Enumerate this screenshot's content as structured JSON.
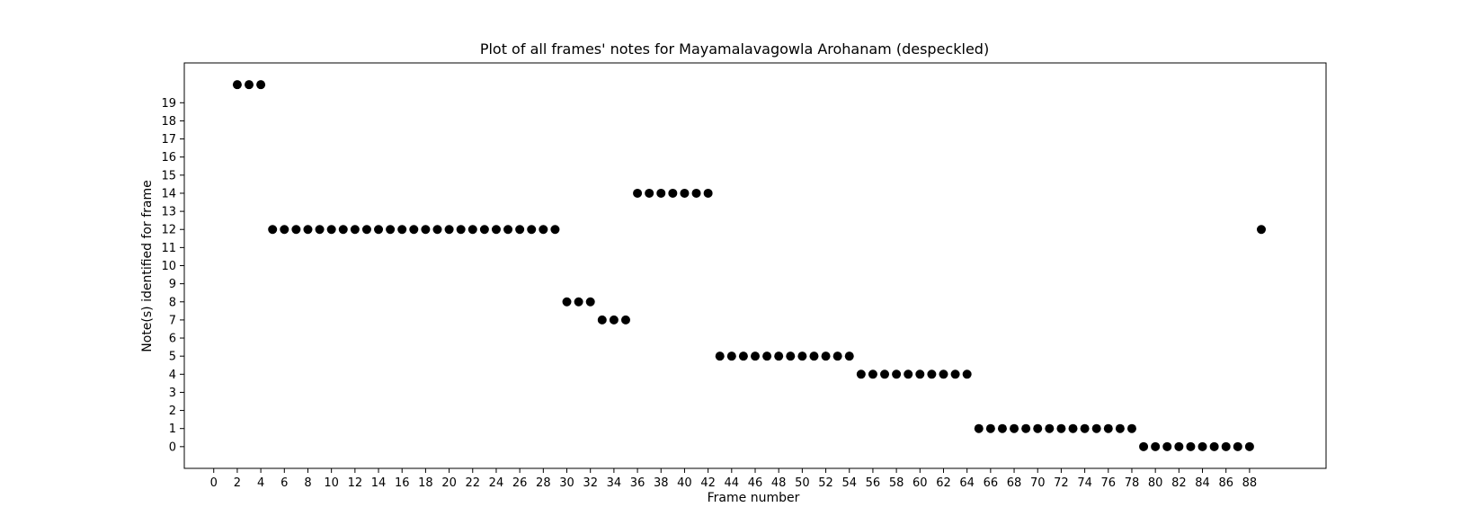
{
  "chart_data": {
    "type": "scatter",
    "title": "Plot of all frames' notes for Mayamalavagowla Arohanam (despeckled)",
    "xlabel": "Frame number",
    "ylabel": "Note(s) identified for frame",
    "xticks": [
      0,
      2,
      4,
      6,
      8,
      10,
      12,
      14,
      16,
      18,
      20,
      22,
      24,
      26,
      28,
      30,
      32,
      34,
      36,
      38,
      40,
      42,
      44,
      46,
      48,
      50,
      52,
      54,
      56,
      58,
      60,
      62,
      64,
      66,
      68,
      70,
      72,
      74,
      76,
      78,
      80,
      82,
      84,
      86,
      88
    ],
    "yticks": [
      0,
      1,
      2,
      3,
      4,
      5,
      6,
      7,
      8,
      9,
      10,
      11,
      12,
      13,
      14,
      15,
      16,
      17,
      18,
      19
    ],
    "xlim": [
      -2.5,
      94.5
    ],
    "ylim": [
      -1.2,
      21.2
    ],
    "grid": false,
    "marker_color": "#000000",
    "points": [
      [
        2,
        20
      ],
      [
        3,
        20
      ],
      [
        4,
        20
      ],
      [
        5,
        12
      ],
      [
        6,
        12
      ],
      [
        7,
        12
      ],
      [
        8,
        12
      ],
      [
        9,
        12
      ],
      [
        10,
        12
      ],
      [
        11,
        12
      ],
      [
        12,
        12
      ],
      [
        13,
        12
      ],
      [
        14,
        12
      ],
      [
        15,
        12
      ],
      [
        16,
        12
      ],
      [
        17,
        12
      ],
      [
        18,
        12
      ],
      [
        19,
        12
      ],
      [
        20,
        12
      ],
      [
        21,
        12
      ],
      [
        22,
        12
      ],
      [
        23,
        12
      ],
      [
        24,
        12
      ],
      [
        25,
        12
      ],
      [
        26,
        12
      ],
      [
        27,
        12
      ],
      [
        28,
        12
      ],
      [
        29,
        12
      ],
      [
        30,
        8
      ],
      [
        31,
        8
      ],
      [
        32,
        8
      ],
      [
        33,
        7
      ],
      [
        34,
        7
      ],
      [
        35,
        7
      ],
      [
        36,
        14
      ],
      [
        37,
        14
      ],
      [
        38,
        14
      ],
      [
        39,
        14
      ],
      [
        40,
        14
      ],
      [
        41,
        14
      ],
      [
        42,
        14
      ],
      [
        43,
        5
      ],
      [
        44,
        5
      ],
      [
        45,
        5
      ],
      [
        46,
        5
      ],
      [
        47,
        5
      ],
      [
        48,
        5
      ],
      [
        49,
        5
      ],
      [
        50,
        5
      ],
      [
        51,
        5
      ],
      [
        52,
        5
      ],
      [
        53,
        5
      ],
      [
        54,
        5
      ],
      [
        55,
        4
      ],
      [
        56,
        4
      ],
      [
        57,
        4
      ],
      [
        58,
        4
      ],
      [
        59,
        4
      ],
      [
        60,
        4
      ],
      [
        61,
        4
      ],
      [
        62,
        4
      ],
      [
        63,
        4
      ],
      [
        64,
        4
      ],
      [
        65,
        1
      ],
      [
        66,
        1
      ],
      [
        67,
        1
      ],
      [
        68,
        1
      ],
      [
        69,
        1
      ],
      [
        70,
        1
      ],
      [
        71,
        1
      ],
      [
        72,
        1
      ],
      [
        73,
        1
      ],
      [
        74,
        1
      ],
      [
        75,
        1
      ],
      [
        76,
        1
      ],
      [
        77,
        1
      ],
      [
        78,
        1
      ],
      [
        79,
        0
      ],
      [
        80,
        0
      ],
      [
        81,
        0
      ],
      [
        82,
        0
      ],
      [
        83,
        0
      ],
      [
        84,
        0
      ],
      [
        85,
        0
      ],
      [
        86,
        0
      ],
      [
        87,
        0
      ],
      [
        88,
        0
      ],
      [
        89,
        12
      ]
    ]
  }
}
